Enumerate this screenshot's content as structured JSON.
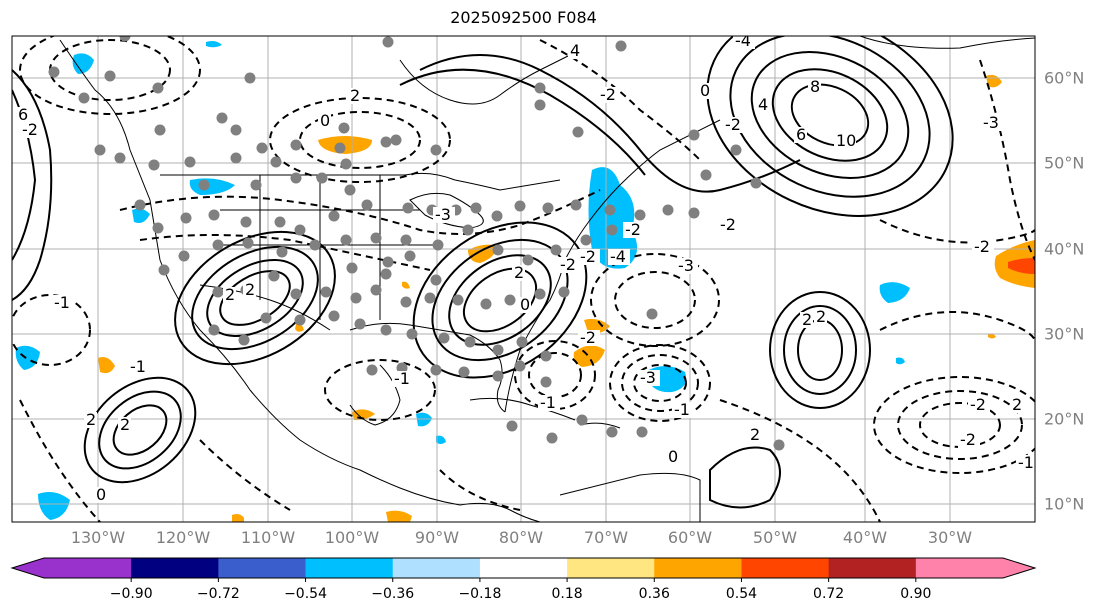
{
  "title": "2025092500 F084",
  "map": {
    "longitude_labels": [
      "130°W",
      "120°W",
      "110°W",
      "100°W",
      "90°W",
      "80°W",
      "70°W",
      "60°W",
      "50°W",
      "40°W",
      "30°W"
    ],
    "latitude_labels": [
      "60°N",
      "50°N",
      "40°N",
      "30°N",
      "20°N",
      "10°N"
    ],
    "contour_labels": [
      "-4",
      "4",
      "4",
      "2",
      "-2",
      "0",
      "6",
      "0",
      "-2",
      "8",
      "10",
      "6",
      "2",
      "-2",
      "-3",
      "-4",
      "-3",
      "-2",
      "2",
      "2",
      "2",
      "0",
      "-3",
      "-1",
      "-2",
      "2",
      "-2",
      "-1",
      "-2",
      "-2",
      "-2",
      "0",
      "-1",
      "-1",
      "2",
      "2",
      "-1",
      "0",
      "-2",
      "2",
      "-3",
      "-2",
      "2",
      "-1"
    ],
    "colorbar": {
      "colors": [
        "#9932cc",
        "#000080",
        "#3a5fcd",
        "#00bfff",
        "#b0e0ff",
        "#ffffff",
        "#ffe680",
        "#ffa500",
        "#ff4500",
        "#b22222",
        "#ff82ab",
        "#ff82ab"
      ],
      "tick_labels": [
        "−0.90",
        "−0.72",
        "−0.54",
        "−0.36",
        "−0.18",
        "0.18",
        "0.36",
        "0.54",
        "0.72",
        "0.90"
      ],
      "extend": "both"
    },
    "station_marker_color": "#808080"
  }
}
